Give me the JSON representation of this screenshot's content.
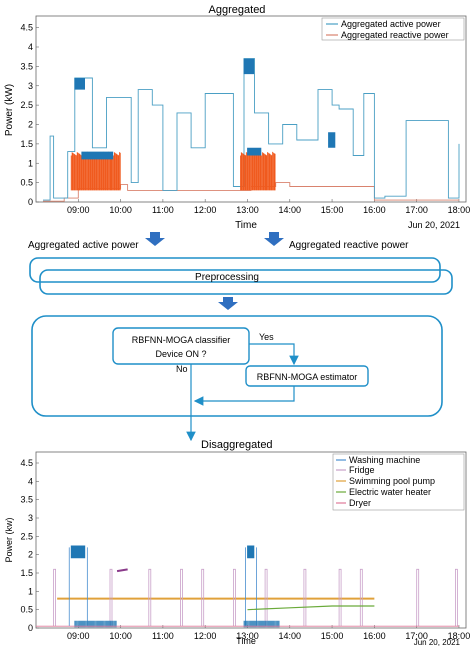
{
  "top_title": "Aggregated",
  "mid_title": "Disaggregated",
  "date_label": "Jun 20, 2021",
  "colors": {
    "active": "#4a9fc4",
    "reactive": "#d9826e",
    "spike_orange": "#f05a1e",
    "spike_blue": "#1f77b4",
    "flow": "#1f8fc8",
    "arrow_fill": "#2f6fc0"
  },
  "flow": {
    "left_input": "Aggregated active power",
    "right_input": "Aggregated reactive power",
    "preprocessing": "Preprocessing",
    "classifier_line1": "RBFNN-MOGA classifier",
    "classifier_line2": "Device ON ?",
    "estimator": "RBFNN-MOGA estimator",
    "yes": "Yes",
    "no": "No"
  },
  "chart_data": [
    {
      "type": "line",
      "title": "Aggregated",
      "xlabel": "Time",
      "ylabel": "Power (kW)",
      "x_ticks": [
        "09:00",
        "10:00",
        "11:00",
        "12:00",
        "13:00",
        "14:00",
        "15:00",
        "16:00",
        "17:00",
        "18:00"
      ],
      "y_ticks": [
        "0",
        "0.5",
        "1",
        "1.5",
        "2",
        "2.5",
        "3",
        "3.5",
        "4",
        "4.5"
      ],
      "ylim": [
        0,
        4.8
      ],
      "legend_position": "top-right",
      "series": [
        {
          "name": "Aggregated active power",
          "x": [
            "08:10",
            "08:20",
            "08:25",
            "08:45",
            "08:55",
            "09:20",
            "09:40",
            "10:15",
            "10:25",
            "10:45",
            "11:00",
            "11:20",
            "11:40",
            "12:00",
            "12:40",
            "12:55",
            "13:10",
            "13:30",
            "13:50",
            "14:10",
            "14:40",
            "15:00",
            "15:10",
            "15:30",
            "15:45",
            "16:00",
            "16:15",
            "16:45",
            "17:15",
            "17:45",
            "18:00"
          ],
          "y": [
            0.05,
            1.7,
            0.1,
            1.3,
            3.2,
            1.4,
            2.7,
            0.5,
            2.9,
            2.5,
            0.3,
            2.3,
            1.4,
            2.8,
            0.4,
            3.7,
            2.3,
            1.5,
            2.0,
            1.6,
            2.9,
            2.5,
            2.4,
            1.2,
            2.8,
            0.1,
            0.15,
            2.1,
            2.1,
            0.1,
            1.5
          ]
        },
        {
          "name": "Aggregated reactive power",
          "x": [
            "08:10",
            "08:40",
            "09:00",
            "10:00",
            "10:10",
            "12:50",
            "13:05",
            "13:40",
            "14:00",
            "15:55",
            "16:00",
            "18:00"
          ],
          "y": [
            0.02,
            0.1,
            0.35,
            0.45,
            0.3,
            0.3,
            0.4,
            0.5,
            0.4,
            0.4,
            0.05,
            0.05
          ]
        }
      ]
    },
    {
      "type": "line",
      "title": "Disaggregated",
      "xlabel": "Time",
      "ylabel": "Power (kw)",
      "x_ticks": [
        "09:00",
        "10:00",
        "11:00",
        "12:00",
        "13:00",
        "14:00",
        "15:00",
        "16:00",
        "17:00",
        "18:00"
      ],
      "y_ticks": [
        "0",
        "0.5",
        "1",
        "1.5",
        "2",
        "2.5",
        "3",
        "3.5",
        "4",
        "4.5"
      ],
      "ylim": [
        0,
        4.8
      ],
      "legend_position": "top-right",
      "series": [
        {
          "name": "Washing machine",
          "x": [
            "08:50",
            "09:10",
            "13:00",
            "13:10"
          ],
          "y": [
            2.2,
            2.1,
            2.2,
            2.1
          ]
        },
        {
          "name": "Fridge",
          "x": [
            "09:55",
            "10:10"
          ],
          "y": [
            1.55,
            1.6
          ]
        },
        {
          "name": "Swimming pool pump",
          "x": [
            "08:30",
            "16:00"
          ],
          "y": [
            0.8,
            0.8
          ]
        },
        {
          "name": "Electric water heater",
          "x": [
            "13:00",
            "14:00",
            "15:00",
            "16:00"
          ],
          "y": [
            0.5,
            0.55,
            0.6,
            0.6
          ]
        },
        {
          "name": "Dryer",
          "x": [
            "08:00",
            "18:00"
          ],
          "y": [
            0.05,
            0.05
          ]
        }
      ]
    }
  ]
}
